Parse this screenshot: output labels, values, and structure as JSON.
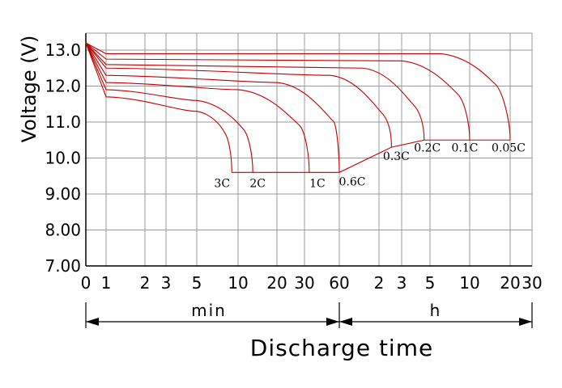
{
  "colors": {
    "curve": "#c00000",
    "grid": "#9a9a9a",
    "axis": "#000000",
    "background": "#ffffff"
  },
  "chart_data": {
    "type": "line",
    "title": "",
    "xlabel": "Discharge time",
    "ylabel": "Voltage (V)",
    "ylim": [
      7.0,
      13.5
    ],
    "grid": true,
    "x_scale": "log",
    "y_ticks": [
      "13.0",
      "12.0",
      "11.0",
      "10.0",
      "9.00",
      "8.00",
      "7.00"
    ],
    "x_tick_labels": [
      "0",
      "1",
      "2",
      "3",
      "5",
      "10",
      "20",
      "30",
      "60",
      "2",
      "3",
      "5",
      "10",
      "20",
      "30"
    ],
    "x_units": [
      {
        "label": "min",
        "range": [
          "0 min",
          "60 min"
        ]
      },
      {
        "label": "h",
        "range": [
          "1 h",
          "30 h"
        ]
      }
    ],
    "series": [
      {
        "name": "3C",
        "end_time_min": 9,
        "cutoff_v": 9.6,
        "points": [
          [
            0,
            13.2
          ],
          [
            1,
            11.7
          ],
          [
            5,
            11.3
          ],
          [
            8,
            10.7
          ],
          [
            9,
            9.6
          ]
        ]
      },
      {
        "name": "2C",
        "end_time_min": 13,
        "cutoff_v": 9.6,
        "points": [
          [
            0,
            13.2
          ],
          [
            1,
            11.9
          ],
          [
            5,
            11.6
          ],
          [
            11,
            10.8
          ],
          [
            13,
            9.6
          ]
        ]
      },
      {
        "name": "1C",
        "end_time_min": 33,
        "cutoff_v": 9.6,
        "points": [
          [
            0,
            13.2
          ],
          [
            1,
            12.1
          ],
          [
            10,
            11.9
          ],
          [
            28,
            10.9
          ],
          [
            33,
            9.6
          ]
        ]
      },
      {
        "name": "0.6C",
        "end_time_min": 60,
        "cutoff_v": 9.6,
        "points": [
          [
            0,
            13.2
          ],
          [
            1,
            12.3
          ],
          [
            20,
            12.1
          ],
          [
            54,
            11.0
          ],
          [
            60,
            9.6
          ]
        ]
      },
      {
        "name": "0.3C",
        "end_time_min": 150,
        "cutoff_v": 10.3,
        "points": [
          [
            0,
            13.2
          ],
          [
            1,
            12.5
          ],
          [
            50,
            12.3
          ],
          [
            130,
            11.2
          ],
          [
            150,
            10.3
          ]
        ]
      },
      {
        "name": "0.2C",
        "end_time_min": 270,
        "cutoff_v": 10.5,
        "points": [
          [
            0,
            13.2
          ],
          [
            1,
            12.6
          ],
          [
            90,
            12.5
          ],
          [
            220,
            11.5
          ],
          [
            270,
            10.5
          ]
        ]
      },
      {
        "name": "0.1C",
        "end_time_min": 600,
        "cutoff_v": 10.5,
        "points": [
          [
            0,
            13.2
          ],
          [
            1,
            12.75
          ],
          [
            180,
            12.7
          ],
          [
            480,
            11.8
          ],
          [
            600,
            10.5
          ]
        ]
      },
      {
        "name": "0.05C",
        "end_time_min": 1200,
        "cutoff_v": 10.5,
        "points": [
          [
            0,
            13.2
          ],
          [
            1,
            12.9
          ],
          [
            360,
            12.9
          ],
          [
            900,
            12.1
          ],
          [
            1200,
            10.5
          ]
        ]
      }
    ]
  }
}
